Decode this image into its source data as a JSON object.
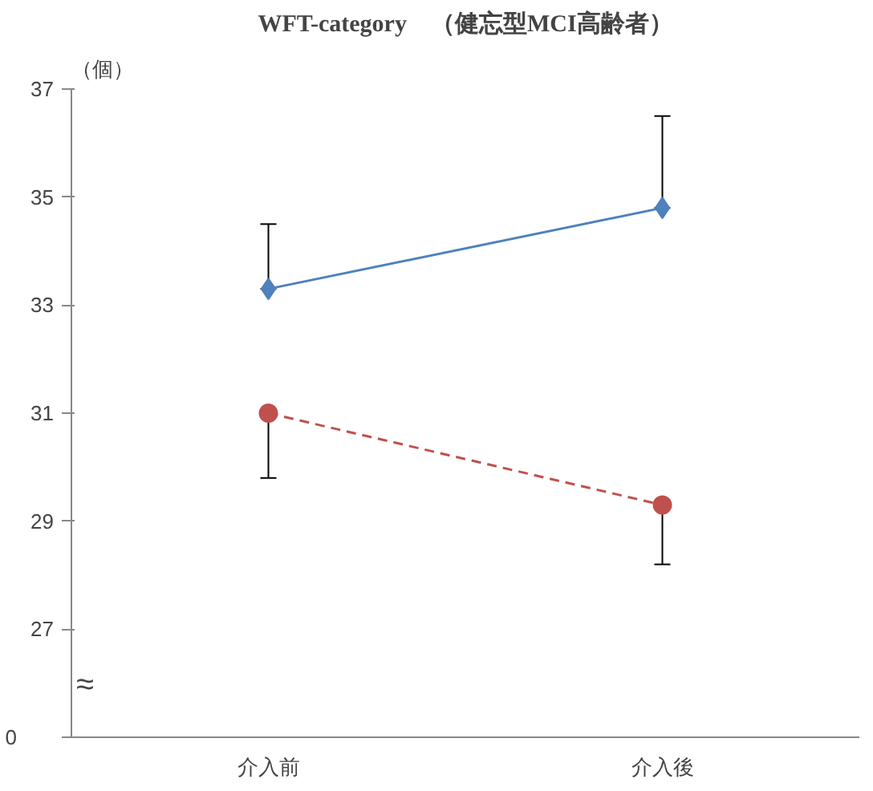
{
  "chart_data": {
    "type": "line",
    "title": "WFT-category　（健忘型MCI高齢者）",
    "ylabel": "（個）",
    "categories": [
      "介入前",
      "介入後"
    ],
    "series": [
      {
        "color": "#4f81bd",
        "values": [
          33.3,
          34.8
        ],
        "errors": [
          [
            33.3,
            34.5
          ],
          [
            34.8,
            36.5
          ]
        ],
        "marker": "diamond",
        "line_style": "solid"
      },
      {
        "color": "#c0504d",
        "values": [
          31.0,
          29.3
        ],
        "errors": [
          [
            29.8,
            31.0
          ],
          [
            28.2,
            29.3
          ]
        ],
        "marker": "circle",
        "line_style": "dashed"
      }
    ],
    "ylim": [
      25,
      37
    ],
    "yticks": [
      {
        "value": 25,
        "label": null
      },
      27,
      29,
      31,
      33,
      35,
      37
    ],
    "annotations": [
      "≈",
      "0"
    ],
    "grid": false
  }
}
